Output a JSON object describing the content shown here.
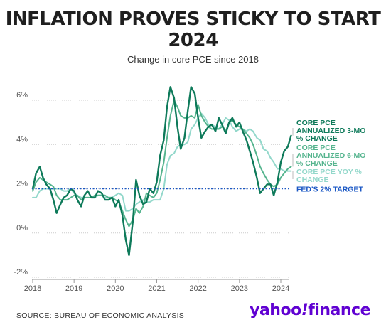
{
  "header": {
    "title_line1": "INFLATION PROVES STICKY TO START",
    "title_line2": "2024",
    "subtitle": "Change in core PCE since 2018"
  },
  "footer": {
    "source": "SOURCE: BUREAU OF ECONOMIC ANALYSIS",
    "brand_part1": "yahoo",
    "brand_bang": "!",
    "brand_part2": "finance"
  },
  "colors": {
    "three_month": "#0e7a5a",
    "six_month": "#55b48e",
    "yoy": "#93d8cb",
    "target": "#1a57c4",
    "grid": "#cccccc",
    "brand": "#6001d2"
  },
  "chart_data": {
    "type": "line",
    "title": "INFLATION PROVES STICKY TO START 2024",
    "subtitle": "Change in core PCE since 2018",
    "xlabel": "",
    "ylabel": "",
    "xlim": [
      2018.0,
      2024.25
    ],
    "ylim": [
      -2,
      7
    ],
    "grid": "horizontal",
    "x_ticks": [
      "2018",
      "2019",
      "2020",
      "2021",
      "2022",
      "2023",
      "2024"
    ],
    "y_ticks": [
      "-2%",
      "0%",
      "2%",
      "4%",
      "6%"
    ],
    "series": [
      {
        "name": "CORE PCE ANNUALIZED 3-MO % CHANGE",
        "label_lines": [
          "CORE PCE",
          "ANNUALIZED 3-MO",
          "% CHANGE"
        ],
        "color": "#0e7a5a",
        "width": 2.4,
        "points": [
          [
            2018.0,
            2.0
          ],
          [
            2018.08,
            2.7
          ],
          [
            2018.17,
            3.0
          ],
          [
            2018.25,
            2.5
          ],
          [
            2018.33,
            2.2
          ],
          [
            2018.42,
            2.0
          ],
          [
            2018.5,
            1.5
          ],
          [
            2018.58,
            0.9
          ],
          [
            2018.67,
            1.3
          ],
          [
            2018.75,
            1.6
          ],
          [
            2018.83,
            1.7
          ],
          [
            2018.92,
            2.0
          ],
          [
            2019.0,
            1.9
          ],
          [
            2019.08,
            1.5
          ],
          [
            2019.17,
            1.2
          ],
          [
            2019.25,
            1.7
          ],
          [
            2019.33,
            1.9
          ],
          [
            2019.42,
            1.6
          ],
          [
            2019.5,
            1.6
          ],
          [
            2019.58,
            1.9
          ],
          [
            2019.67,
            1.8
          ],
          [
            2019.75,
            1.5
          ],
          [
            2019.83,
            1.5
          ],
          [
            2019.92,
            1.6
          ],
          [
            2020.0,
            1.2
          ],
          [
            2020.08,
            1.5
          ],
          [
            2020.17,
            0.8
          ],
          [
            2020.25,
            -0.3
          ],
          [
            2020.33,
            -1.0
          ],
          [
            2020.42,
            0.5
          ],
          [
            2020.5,
            2.4
          ],
          [
            2020.58,
            1.7
          ],
          [
            2020.67,
            1.3
          ],
          [
            2020.75,
            1.4
          ],
          [
            2020.83,
            2.0
          ],
          [
            2020.92,
            1.8
          ],
          [
            2021.0,
            2.3
          ],
          [
            2021.08,
            3.5
          ],
          [
            2021.17,
            4.2
          ],
          [
            2021.25,
            5.7
          ],
          [
            2021.33,
            6.6
          ],
          [
            2021.42,
            6.1
          ],
          [
            2021.5,
            4.8
          ],
          [
            2021.58,
            3.8
          ],
          [
            2021.67,
            4.3
          ],
          [
            2021.75,
            5.5
          ],
          [
            2021.83,
            6.6
          ],
          [
            2021.92,
            6.3
          ],
          [
            2022.0,
            5.2
          ],
          [
            2022.08,
            4.3
          ],
          [
            2022.17,
            4.6
          ],
          [
            2022.25,
            4.8
          ],
          [
            2022.33,
            4.9
          ],
          [
            2022.42,
            4.6
          ],
          [
            2022.5,
            5.2
          ],
          [
            2022.58,
            4.9
          ],
          [
            2022.67,
            4.5
          ],
          [
            2022.75,
            5.0
          ],
          [
            2022.83,
            5.2
          ],
          [
            2022.92,
            4.8
          ],
          [
            2023.0,
            5.0
          ],
          [
            2023.08,
            4.6
          ],
          [
            2023.17,
            4.2
          ],
          [
            2023.25,
            3.7
          ],
          [
            2023.33,
            3.2
          ],
          [
            2023.42,
            2.5
          ],
          [
            2023.5,
            1.8
          ],
          [
            2023.58,
            2.0
          ],
          [
            2023.67,
            2.2
          ],
          [
            2023.75,
            2.2
          ],
          [
            2023.83,
            1.7
          ],
          [
            2023.92,
            2.3
          ],
          [
            2024.0,
            3.2
          ],
          [
            2024.08,
            3.7
          ],
          [
            2024.17,
            3.9
          ],
          [
            2024.25,
            4.4
          ]
        ]
      },
      {
        "name": "CORE PCE ANNUALIZED 6-MO % CHANGE",
        "label_lines": [
          "CORE PCE",
          "ANNUALIZED 6-MO",
          "% CHANGE"
        ],
        "color": "#55b48e",
        "width": 2.0,
        "points": [
          [
            2018.0,
            1.9
          ],
          [
            2018.08,
            2.3
          ],
          [
            2018.17,
            2.5
          ],
          [
            2018.25,
            2.4
          ],
          [
            2018.33,
            2.3
          ],
          [
            2018.42,
            2.2
          ],
          [
            2018.5,
            2.1
          ],
          [
            2018.58,
            1.7
          ],
          [
            2018.67,
            1.5
          ],
          [
            2018.75,
            1.5
          ],
          [
            2018.83,
            1.5
          ],
          [
            2018.92,
            1.6
          ],
          [
            2019.0,
            1.7
          ],
          [
            2019.08,
            1.7
          ],
          [
            2019.17,
            1.5
          ],
          [
            2019.25,
            1.6
          ],
          [
            2019.33,
            1.6
          ],
          [
            2019.42,
            1.6
          ],
          [
            2019.5,
            1.7
          ],
          [
            2019.58,
            1.7
          ],
          [
            2019.67,
            1.7
          ],
          [
            2019.75,
            1.7
          ],
          [
            2019.83,
            1.6
          ],
          [
            2019.92,
            1.6
          ],
          [
            2020.0,
            1.5
          ],
          [
            2020.08,
            1.4
          ],
          [
            2020.17,
            1.0
          ],
          [
            2020.25,
            0.6
          ],
          [
            2020.33,
            0.3
          ],
          [
            2020.42,
            0.6
          ],
          [
            2020.5,
            1.1
          ],
          [
            2020.58,
            0.9
          ],
          [
            2020.67,
            1.2
          ],
          [
            2020.75,
            1.8
          ],
          [
            2020.83,
            1.7
          ],
          [
            2020.92,
            1.6
          ],
          [
            2021.0,
            1.8
          ],
          [
            2021.08,
            2.4
          ],
          [
            2021.17,
            3.2
          ],
          [
            2021.25,
            4.3
          ],
          [
            2021.33,
            5.3
          ],
          [
            2021.42,
            6.0
          ],
          [
            2021.5,
            5.7
          ],
          [
            2021.58,
            5.3
          ],
          [
            2021.67,
            5.2
          ],
          [
            2021.75,
            5.2
          ],
          [
            2021.83,
            5.3
          ],
          [
            2021.92,
            5.2
          ],
          [
            2022.0,
            5.8
          ],
          [
            2022.08,
            5.3
          ],
          [
            2022.17,
            5.0
          ],
          [
            2022.25,
            4.8
          ],
          [
            2022.33,
            4.7
          ],
          [
            2022.42,
            4.7
          ],
          [
            2022.5,
            4.7
          ],
          [
            2022.58,
            4.8
          ],
          [
            2022.67,
            4.6
          ],
          [
            2022.75,
            5.0
          ],
          [
            2022.83,
            5.1
          ],
          [
            2022.92,
            4.9
          ],
          [
            2023.0,
            4.8
          ],
          [
            2023.08,
            4.7
          ],
          [
            2023.17,
            4.5
          ],
          [
            2023.25,
            4.3
          ],
          [
            2023.33,
            4.0
          ],
          [
            2023.42,
            3.5
          ],
          [
            2023.5,
            3.0
          ],
          [
            2023.58,
            2.7
          ],
          [
            2023.67,
            2.4
          ],
          [
            2023.75,
            2.2
          ],
          [
            2023.83,
            2.1
          ],
          [
            2023.92,
            2.2
          ],
          [
            2024.0,
            2.5
          ],
          [
            2024.08,
            2.7
          ],
          [
            2024.17,
            2.9
          ],
          [
            2024.25,
            3.0
          ]
        ]
      },
      {
        "name": "CORE PCE YOY % CHANGE",
        "label_lines": [
          "CORE PCE YOY %",
          "CHANGE"
        ],
        "color": "#93d8cb",
        "width": 2.0,
        "points": [
          [
            2018.0,
            1.6
          ],
          [
            2018.08,
            1.6
          ],
          [
            2018.17,
            1.9
          ],
          [
            2018.25,
            2.0
          ],
          [
            2018.33,
            2.0
          ],
          [
            2018.42,
            2.0
          ],
          [
            2018.5,
            2.0
          ],
          [
            2018.58,
            2.0
          ],
          [
            2018.67,
            2.0
          ],
          [
            2018.75,
            1.9
          ],
          [
            2018.83,
            1.9
          ],
          [
            2018.92,
            2.0
          ],
          [
            2019.0,
            1.8
          ],
          [
            2019.08,
            1.7
          ],
          [
            2019.17,
            1.6
          ],
          [
            2019.25,
            1.6
          ],
          [
            2019.33,
            1.6
          ],
          [
            2019.42,
            1.6
          ],
          [
            2019.5,
            1.6
          ],
          [
            2019.58,
            1.7
          ],
          [
            2019.67,
            1.7
          ],
          [
            2019.75,
            1.6
          ],
          [
            2019.83,
            1.6
          ],
          [
            2019.92,
            1.6
          ],
          [
            2020.0,
            1.7
          ],
          [
            2020.08,
            1.8
          ],
          [
            2020.17,
            1.7
          ],
          [
            2020.25,
            1.0
          ],
          [
            2020.33,
            1.0
          ],
          [
            2020.42,
            1.1
          ],
          [
            2020.5,
            1.3
          ],
          [
            2020.58,
            1.4
          ],
          [
            2020.67,
            1.5
          ],
          [
            2020.75,
            1.4
          ],
          [
            2020.83,
            1.4
          ],
          [
            2020.92,
            1.5
          ],
          [
            2021.0,
            1.5
          ],
          [
            2021.08,
            1.5
          ],
          [
            2021.17,
            2.0
          ],
          [
            2021.25,
            3.1
          ],
          [
            2021.33,
            3.5
          ],
          [
            2021.42,
            3.6
          ],
          [
            2021.5,
            3.9
          ],
          [
            2021.58,
            4.0
          ],
          [
            2021.67,
            4.0
          ],
          [
            2021.75,
            4.1
          ],
          [
            2021.83,
            4.7
          ],
          [
            2021.92,
            4.9
          ],
          [
            2022.0,
            5.2
          ],
          [
            2022.08,
            5.4
          ],
          [
            2022.17,
            5.2
          ],
          [
            2022.25,
            4.9
          ],
          [
            2022.33,
            4.9
          ],
          [
            2022.42,
            4.8
          ],
          [
            2022.5,
            4.7
          ],
          [
            2022.58,
            4.9
          ],
          [
            2022.67,
            5.2
          ],
          [
            2022.75,
            5.1
          ],
          [
            2022.83,
            4.8
          ],
          [
            2022.92,
            4.6
          ],
          [
            2023.0,
            4.7
          ],
          [
            2023.08,
            4.7
          ],
          [
            2023.17,
            4.6
          ],
          [
            2023.25,
            4.7
          ],
          [
            2023.33,
            4.6
          ],
          [
            2023.42,
            4.3
          ],
          [
            2023.5,
            4.2
          ],
          [
            2023.58,
            3.8
          ],
          [
            2023.67,
            3.7
          ],
          [
            2023.75,
            3.4
          ],
          [
            2023.83,
            3.2
          ],
          [
            2023.92,
            2.9
          ],
          [
            2024.0,
            2.9
          ],
          [
            2024.08,
            2.8
          ],
          [
            2024.17,
            2.8
          ],
          [
            2024.25,
            2.8
          ]
        ]
      }
    ],
    "reference_lines": [
      {
        "name": "FED'S 2% TARGET",
        "y": 2,
        "color": "#1a57c4",
        "style": "dotted"
      }
    ]
  }
}
